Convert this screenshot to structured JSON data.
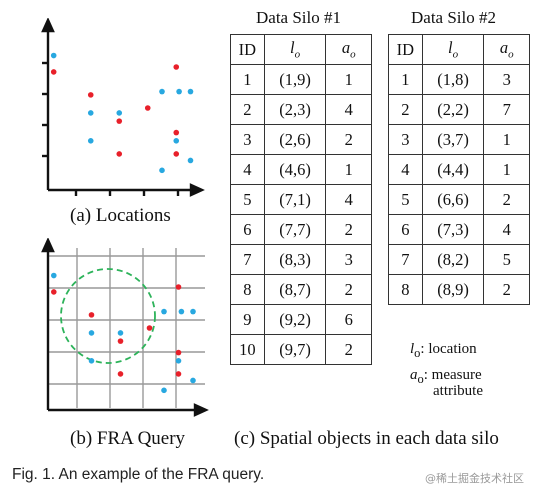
{
  "panel_a": {
    "caption": "(a) Locations",
    "red_points": [
      [
        0.2,
        0.72
      ],
      [
        1.5,
        0.58
      ],
      [
        2.5,
        0.42
      ],
      [
        3.5,
        0.5
      ],
      [
        4.5,
        0.75
      ],
      [
        4.5,
        0.35
      ],
      [
        4.5,
        0.22
      ],
      [
        2.5,
        0.22
      ]
    ],
    "blue_points": [
      [
        0.2,
        0.82
      ],
      [
        1.5,
        0.47
      ],
      [
        2.5,
        0.47
      ],
      [
        4.0,
        0.6
      ],
      [
        4.6,
        0.6
      ],
      [
        5.0,
        0.6
      ],
      [
        1.5,
        0.3
      ],
      [
        4.5,
        0.3
      ],
      [
        4.0,
        0.12
      ],
      [
        5.0,
        0.18
      ]
    ]
  },
  "panel_b": {
    "caption": "(b) FRA Query"
  },
  "panel_c": {
    "caption": "(c) Spatial objects in each data silo"
  },
  "silo1": {
    "title": "Data Silo #1",
    "headers": {
      "id": "ID",
      "loc": "l",
      "loc_sub": "o",
      "attr": "a",
      "attr_sub": "o"
    },
    "rows": [
      [
        "1",
        "(1,9)",
        "1"
      ],
      [
        "2",
        "(2,3)",
        "4"
      ],
      [
        "3",
        "(2,6)",
        "2"
      ],
      [
        "4",
        "(4,6)",
        "1"
      ],
      [
        "5",
        "(7,1)",
        "4"
      ],
      [
        "6",
        "(7,7)",
        "2"
      ],
      [
        "7",
        "(8,3)",
        "3"
      ],
      [
        "8",
        "(8,7)",
        "2"
      ],
      [
        "9",
        "(9,2)",
        "6"
      ],
      [
        "10",
        "(9,7)",
        "2"
      ]
    ]
  },
  "silo2": {
    "title": "Data Silo #2",
    "headers": {
      "id": "ID",
      "loc": "l",
      "loc_sub": "o",
      "attr": "a",
      "attr_sub": "o"
    },
    "rows": [
      [
        "1",
        "(1,8)",
        "3"
      ],
      [
        "2",
        "(2,2)",
        "7"
      ],
      [
        "3",
        "(3,7)",
        "1"
      ],
      [
        "4",
        "(4,4)",
        "1"
      ],
      [
        "5",
        "(6,6)",
        "2"
      ],
      [
        "6",
        "(7,3)",
        "4"
      ],
      [
        "7",
        "(8,2)",
        "5"
      ],
      [
        "8",
        "(8,9)",
        "2"
      ]
    ]
  },
  "legend": {
    "lo_symbol": "l",
    "lo_sub": "o",
    "lo_text": ": location",
    "ao_symbol": "a",
    "ao_sub": "o",
    "ao_text_1": ": measure",
    "ao_text_2": "attribute"
  },
  "figure_caption": "Fig. 1. An example of the FRA query.",
  "watermark": "@稀土掘金技术社区",
  "colors": {
    "red": "#e8202a",
    "blue": "#28a8e0",
    "circle": "#2db35a",
    "grid": "#999999"
  }
}
